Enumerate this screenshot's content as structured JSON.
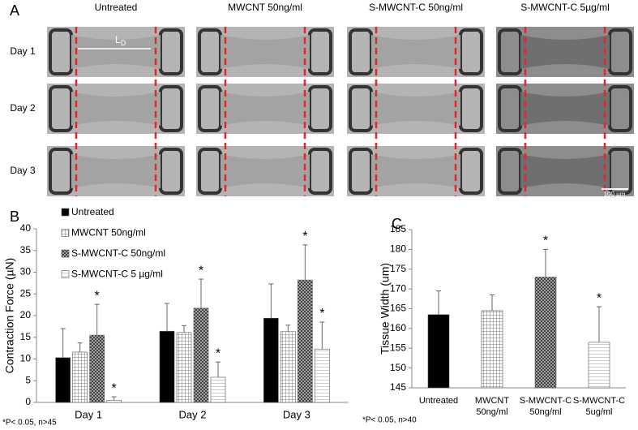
{
  "panel_a": {
    "label": "A",
    "columns": [
      "Untreated",
      "MWCNT  50ng/ml",
      "S-MWCNT-C  50ng/ml",
      "S-MWCNT-C  5µg/ml"
    ],
    "rows": [
      "Day 1",
      "Day 2",
      "Day 3"
    ],
    "length_label": "L",
    "length_sub": "D",
    "scale_bar": "100 µm"
  },
  "chart_data": [
    {
      "type": "bar",
      "panel": "B",
      "y_label": "Contraction Force (µN)",
      "note": "*P< 0.05, n>45",
      "categories": [
        "Day 1",
        "Day 2",
        "Day 3"
      ],
      "series": [
        {
          "name": "Untreated",
          "color": "#000000",
          "values": [
            10.3,
            16.4,
            19.4
          ],
          "errors": [
            6.7,
            6.4,
            7.9
          ],
          "significance": [
            null,
            null,
            null
          ]
        },
        {
          "name": "MWCNT 50ng/ml",
          "color": "#b5b5b5",
          "values": [
            11.6,
            16.1,
            16.3
          ],
          "errors": [
            2.1,
            1.6,
            1.5
          ],
          "significance": [
            null,
            null,
            null
          ]
        },
        {
          "name": "S-MWCNT-C 50ng/ml",
          "color": "#6e6e6e",
          "values": [
            15.5,
            21.7,
            28.2
          ],
          "errors": [
            7.1,
            6.7,
            8.1
          ],
          "significance": [
            "*",
            "*",
            "*"
          ]
        },
        {
          "name": "S-MWCNT-C 5 µg/ml",
          "color": "#ededed",
          "values": [
            0.5,
            5.8,
            12.3
          ],
          "errors": [
            0.8,
            3.5,
            6.2
          ],
          "significance": [
            "*",
            "*",
            "*"
          ]
        }
      ],
      "ylim": [
        0,
        40
      ],
      "yticks": [
        0,
        5,
        10,
        15,
        20,
        25,
        30,
        35,
        40
      ]
    },
    {
      "type": "bar",
      "panel": "C",
      "y_label": "Tissue Width (um)",
      "note": "*P< 0.05, n>40",
      "categories": [
        [
          "Untreated"
        ],
        [
          "MWCNT",
          "50ng/ml"
        ],
        [
          "S-MWCNT-C",
          "50ng/ml"
        ],
        [
          "S-MWCNT-C",
          "5ug/ml"
        ]
      ],
      "values": [
        163.5,
        164.5,
        173,
        156.5
      ],
      "errors": [
        6,
        4,
        7,
        9
      ],
      "significance": [
        null,
        null,
        "*",
        "*"
      ],
      "colors": [
        "#000000",
        "#b5b5b5",
        "#6e6e6e",
        "#ededed"
      ],
      "ylim": [
        145,
        185
      ],
      "yticks": [
        145,
        150,
        155,
        160,
        165,
        170,
        175,
        180,
        185
      ]
    }
  ]
}
